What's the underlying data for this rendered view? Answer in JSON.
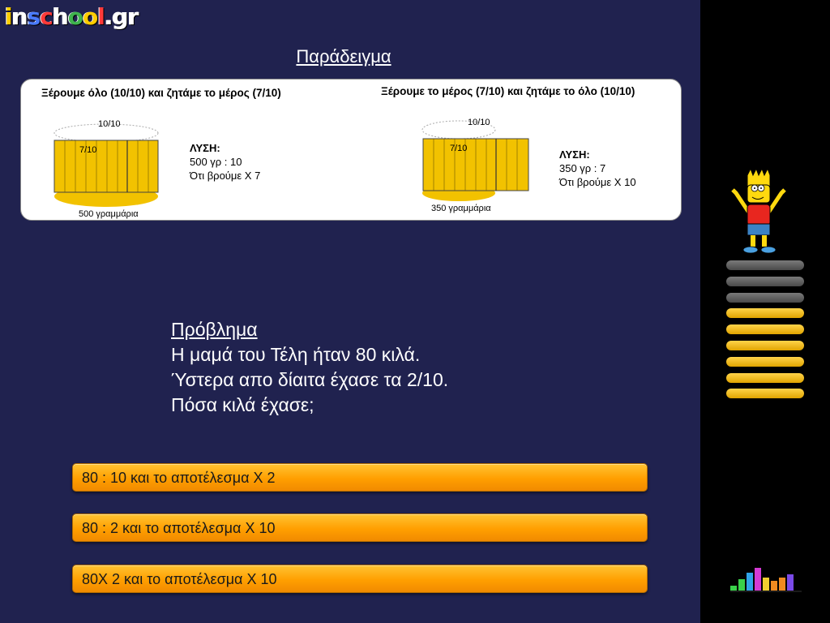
{
  "logo": {
    "letters": [
      "i",
      "n",
      "s",
      "c",
      "h",
      "o",
      "o",
      "l",
      ".",
      "g",
      "r"
    ],
    "colors": [
      "#ffcc00",
      "#ffffff",
      "#4a7bff",
      "#ff3a3a",
      "#ffffff",
      "#3fb34f",
      "#ffcc00",
      "#ff3a3a",
      "#ffffff",
      "#ffffff",
      "#ffffff"
    ]
  },
  "page_title": "Παράδειγμα",
  "example": {
    "left": {
      "heading": "Ξέρουμε όλο (10/10) και ζητάμε το μέρος (7/10)",
      "whole_label": "10/10",
      "part_label": "7/10",
      "base_label": "500 γραμμάρια",
      "solution_title": "ΛΥΣΗ:",
      "solution_line1": "500 γρ : 10",
      "solution_line2": "Ότι βρούμε Χ 7"
    },
    "right": {
      "heading": "Ξέρουμε το μέρος (7/10) και ζητάμε το όλο (10/10)",
      "whole_label": "10/10",
      "part_label": "7/10",
      "base_label": "350 γραμμάρια",
      "solution_title": "ΛΥΣΗ:",
      "solution_line1": "350 γρ : 7",
      "solution_line2": "Ότι βρούμε Χ 10"
    }
  },
  "problem": {
    "title": "Πρόβλημα",
    "line1": "Η μαμά του Τέλη ήταν 80 κιλά.",
    "line2": "Ύστερα απο δίαιτα έχασε τα 2/10.",
    "line3": "Πόσα κιλά έχασε;"
  },
  "answers": [
    "80 : 10 και το αποτέλεσμα Χ 2",
    "80 : 2 και το αποτέλεσμα Χ 10",
    "80Χ 2 και το αποτέλεσμα Χ 10"
  ],
  "progress": {
    "total": 9,
    "completed": 3
  },
  "colors": {
    "background": "#20224f",
    "sidebar": "#000000",
    "answer_orange": "#ff9f00",
    "bar_gold": "#f2b800"
  },
  "icons": [
    "bart-character-icon",
    "sound-equalizer-icon"
  ]
}
